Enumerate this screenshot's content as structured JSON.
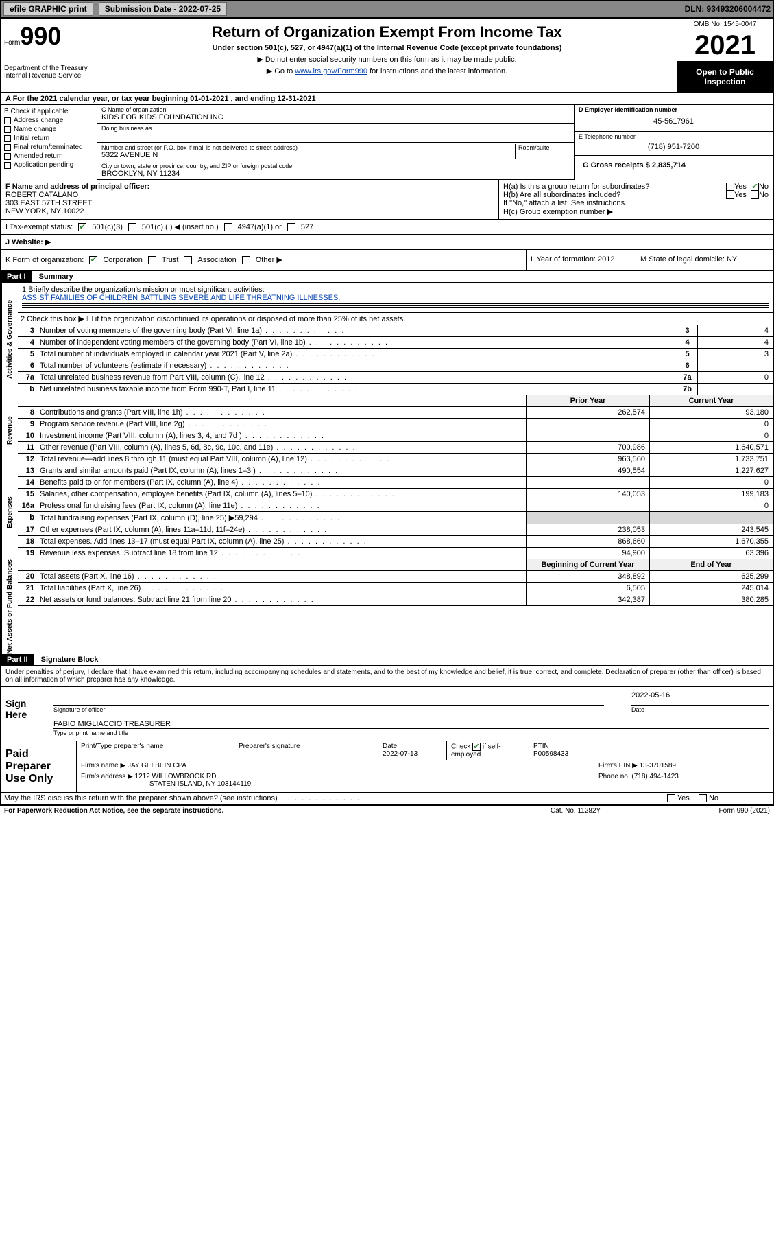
{
  "topbar": {
    "efile_label": "efile GRAPHIC print",
    "submission_label": "Submission Date - 2022-07-25",
    "dln": "DLN: 93493206004472"
  },
  "header": {
    "form_word": "Form",
    "form_num": "990",
    "dept": "Department of the Treasury Internal Revenue Service",
    "title": "Return of Organization Exempt From Income Tax",
    "subtitle": "Under section 501(c), 527, or 4947(a)(1) of the Internal Revenue Code (except private foundations)",
    "note1": "▶ Do not enter social security numbers on this form as it may be made public.",
    "note2_pre": "▶ Go to ",
    "note2_link": "www.irs.gov/Form990",
    "note2_post": " for instructions and the latest information.",
    "omb": "OMB No. 1545-0047",
    "year": "2021",
    "open_public": "Open to Public Inspection"
  },
  "row_a": "A For the 2021 calendar year, or tax year beginning 01-01-2021   , and ending 12-31-2021",
  "b": {
    "label": "B Check if applicable:",
    "items": [
      "Address change",
      "Name change",
      "Initial return",
      "Final return/terminated",
      "Amended return",
      "Application pending"
    ]
  },
  "c": {
    "name_label": "C Name of organization",
    "name": "KIDS FOR KIDS FOUNDATION INC",
    "dba_label": "Doing business as",
    "addr_label": "Number and street (or P.O. box if mail is not delivered to street address)",
    "room_label": "Room/suite",
    "addr": "5322 AVENUE N",
    "city_label": "City or town, state or province, country, and ZIP or foreign postal code",
    "city": "BROOKLYN, NY  11234"
  },
  "d": {
    "ein_label": "D Employer identification number",
    "ein": "45-5617961",
    "e_label": "E Telephone number",
    "phone": "(718) 951-7200",
    "g_label": "G Gross receipts $ 2,835,714"
  },
  "f": {
    "label": "F Name and address of principal officer:",
    "name": "ROBERT CATALANO",
    "addr1": "303 EAST 57TH STREET",
    "addr2": "NEW YORK, NY  10022"
  },
  "h": {
    "a_label": "H(a)  Is this a group return for subordinates?",
    "b_label": "H(b)  Are all subordinates included?",
    "note": "If \"No,\" attach a list. See instructions.",
    "c_label": "H(c)  Group exemption number ▶",
    "yes": "Yes",
    "no": "No"
  },
  "i": {
    "label": "I   Tax-exempt status:",
    "opt1": "501(c)(3)",
    "opt2": "501(c) (  ) ◀ (insert no.)",
    "opt3": "4947(a)(1) or",
    "opt4": "527"
  },
  "j": {
    "label": "J   Website: ▶"
  },
  "k": {
    "label": "K Form of organization:",
    "opts": [
      "Corporation",
      "Trust",
      "Association",
      "Other ▶"
    ],
    "l_label": "L Year of formation: 2012",
    "m_label": "M State of legal domicile: NY"
  },
  "part1": {
    "hdr": "Part I",
    "title": "Summary"
  },
  "vtabs": {
    "gov": "Activities & Governance",
    "rev": "Revenue",
    "exp": "Expenses",
    "net": "Net Assets or Fund Balances"
  },
  "mission": {
    "label": "1   Briefly describe the organization's mission or most significant activities:",
    "text": "ASSIST FAMILIES OF CHILDREN BATTLING SEVERE AND LIFE THREATNING ILLNESSES."
  },
  "line2": "2   Check this box ▶ ☐  if the organization discontinued its operations or disposed of more than 25% of its net assets.",
  "lines_single": [
    {
      "n": "3",
      "t": "Number of voting members of the governing body (Part VI, line 1a)",
      "c": "3",
      "v": "4"
    },
    {
      "n": "4",
      "t": "Number of independent voting members of the governing body (Part VI, line 1b)",
      "c": "4",
      "v": "4"
    },
    {
      "n": "5",
      "t": "Total number of individuals employed in calendar year 2021 (Part V, line 2a)",
      "c": "5",
      "v": "3"
    },
    {
      "n": "6",
      "t": "Total number of volunteers (estimate if necessary)",
      "c": "6",
      "v": ""
    },
    {
      "n": "7a",
      "t": "Total unrelated business revenue from Part VIII, column (C), line 12",
      "c": "7a",
      "v": "0"
    },
    {
      "n": "b",
      "t": "Net unrelated business taxable income from Form 990-T, Part I, line 11",
      "c": "7b",
      "v": ""
    }
  ],
  "col_hdr": {
    "prior": "Prior Year",
    "current": "Current Year"
  },
  "rev_lines": [
    {
      "n": "8",
      "t": "Contributions and grants (Part VIII, line 1h)",
      "a": "262,574",
      "b": "93,180"
    },
    {
      "n": "9",
      "t": "Program service revenue (Part VIII, line 2g)",
      "a": "",
      "b": "0"
    },
    {
      "n": "10",
      "t": "Investment income (Part VIII, column (A), lines 3, 4, and 7d )",
      "a": "",
      "b": "0"
    },
    {
      "n": "11",
      "t": "Other revenue (Part VIII, column (A), lines 5, 6d, 8c, 9c, 10c, and 11e)",
      "a": "700,986",
      "b": "1,640,571"
    },
    {
      "n": "12",
      "t": "Total revenue—add lines 8 through 11 (must equal Part VIII, column (A), line 12)",
      "a": "963,560",
      "b": "1,733,751"
    }
  ],
  "exp_lines": [
    {
      "n": "13",
      "t": "Grants and similar amounts paid (Part IX, column (A), lines 1–3 )",
      "a": "490,554",
      "b": "1,227,627"
    },
    {
      "n": "14",
      "t": "Benefits paid to or for members (Part IX, column (A), line 4)",
      "a": "",
      "b": "0"
    },
    {
      "n": "15",
      "t": "Salaries, other compensation, employee benefits (Part IX, column (A), lines 5–10)",
      "a": "140,053",
      "b": "199,183"
    },
    {
      "n": "16a",
      "t": "Professional fundraising fees (Part IX, column (A), line 11e)",
      "a": "",
      "b": "0"
    },
    {
      "n": "b",
      "t": "Total fundraising expenses (Part IX, column (D), line 25) ▶59,294",
      "a": "",
      "b": "",
      "shade": true
    },
    {
      "n": "17",
      "t": "Other expenses (Part IX, column (A), lines 11a–11d, 11f–24e)",
      "a": "238,053",
      "b": "243,545"
    },
    {
      "n": "18",
      "t": "Total expenses. Add lines 13–17 (must equal Part IX, column (A), line 25)",
      "a": "868,660",
      "b": "1,670,355"
    },
    {
      "n": "19",
      "t": "Revenue less expenses. Subtract line 18 from line 12",
      "a": "94,900",
      "b": "63,396"
    }
  ],
  "net_hdr": {
    "a": "Beginning of Current Year",
    "b": "End of Year"
  },
  "net_lines": [
    {
      "n": "20",
      "t": "Total assets (Part X, line 16)",
      "a": "348,892",
      "b": "625,299"
    },
    {
      "n": "21",
      "t": "Total liabilities (Part X, line 26)",
      "a": "6,505",
      "b": "245,014"
    },
    {
      "n": "22",
      "t": "Net assets or fund balances. Subtract line 21 from line 20",
      "a": "342,387",
      "b": "380,285"
    }
  ],
  "part2": {
    "hdr": "Part II",
    "title": "Signature Block"
  },
  "sig": {
    "intro": "Under penalties of perjury, I declare that I have examined this return, including accompanying schedules and statements, and to the best of my knowledge and belief, it is true, correct, and complete. Declaration of preparer (other than officer) is based on all information of which preparer has any knowledge.",
    "here": "Sign Here",
    "sig_officer": "Signature of officer",
    "date_label": "Date",
    "date": "2022-05-16",
    "name": "FABIO MIGLIACCIO TREASURER",
    "name_label": "Type or print name and title"
  },
  "prep": {
    "title": "Paid Preparer Use Only",
    "h1": "Print/Type preparer's name",
    "h2": "Preparer's signature",
    "h3": "Date",
    "date": "2022-07-13",
    "h4_pre": "Check",
    "h4_post": "if self-employed",
    "h5": "PTIN",
    "ptin": "P00598433",
    "firm_label": "Firm's name    ▶",
    "firm": "JAY GELBEIN CPA",
    "ein_label": "Firm's EIN ▶",
    "ein": "13-3701589",
    "addr_label": "Firm's address ▶",
    "addr1": "1212 WILLOWBROOK RD",
    "addr2": "STATEN ISLAND, NY  103144119",
    "phone_label": "Phone no.",
    "phone": "(718) 494-1423"
  },
  "may_discuss": "May the IRS discuss this return with the preparer shown above? (see instructions)",
  "footer": {
    "left": "For Paperwork Reduction Act Notice, see the separate instructions.",
    "mid": "Cat. No. 11282Y",
    "right": "Form 990 (2021)"
  }
}
